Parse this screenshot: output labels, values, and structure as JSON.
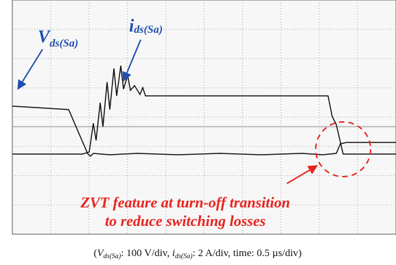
{
  "labels": {
    "vds": {
      "main": "V",
      "sub": "ds(Sa)"
    },
    "ids": {
      "main": "i",
      "sub": "ds(Sa)"
    }
  },
  "annotation": [
    "ZVT feature at turn-off transition",
    "to reduce switching losses"
  ],
  "caption": {
    "open": "(",
    "v": "V",
    "v_sub": "ds(Sa)",
    "v_scale": ": 100 V/div, ",
    "i": "i",
    "i_sub": "ds(Sa)",
    "rest": ": 2 A/div, time: 0.5 µs/div)"
  }
}
